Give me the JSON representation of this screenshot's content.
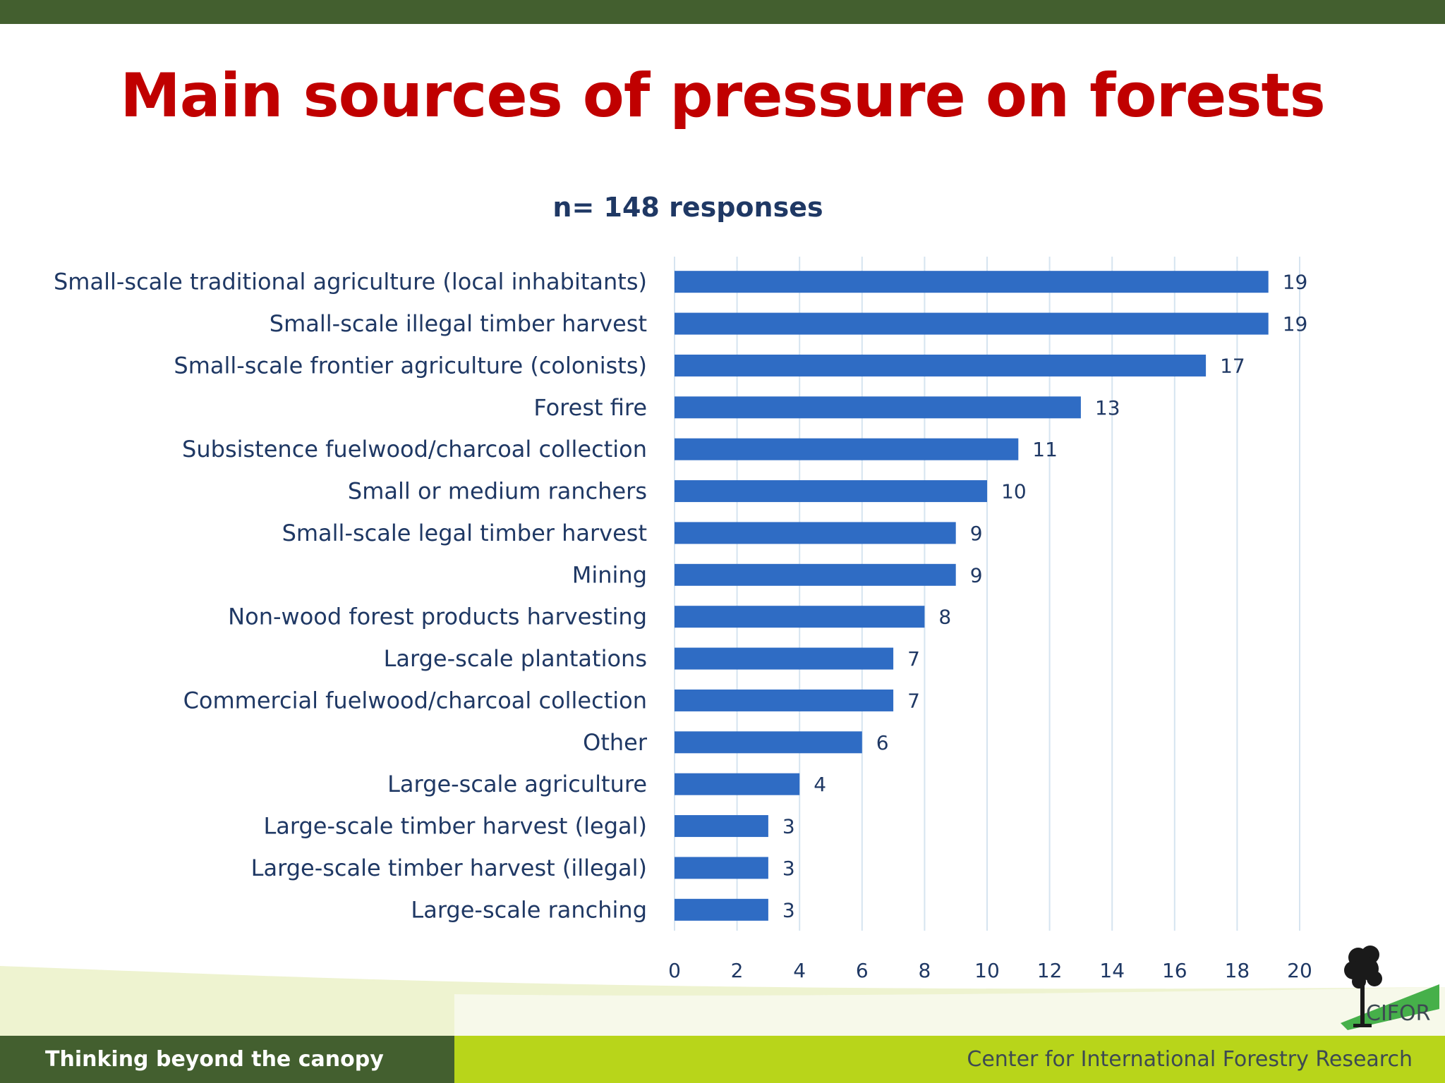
{
  "slide": {
    "title": "Main sources of pressure on forests",
    "footer_left": "Thinking beyond the canopy",
    "footer_right": "Center for International Forestry Research",
    "logo_text": "CIFOR"
  },
  "colors": {
    "top_bar": "#435f2f",
    "title": "#c00000",
    "subtitle": "#1f3864",
    "label_text": "#1f3864",
    "bar": "#2f6cc4",
    "grid": "#d6e4f0",
    "footer_dark": "#435f2f",
    "footer_lime": "#b8d51a",
    "footer_text": "#3d4a52",
    "logo_tree": "#1a1a1a",
    "logo_swoosh": "#46b04a"
  },
  "chart_data": {
    "type": "bar",
    "orientation": "horizontal",
    "title": "n= 148 responses",
    "xlabel": "",
    "ylabel": "",
    "xlim": [
      0,
      20
    ],
    "xticks": [
      0,
      2,
      4,
      6,
      8,
      10,
      12,
      14,
      16,
      18,
      20
    ],
    "grid": "vertical",
    "data_labels": true,
    "categories": [
      "Small-scale traditional agriculture (local inhabitants)",
      "Small-scale illegal timber harvest",
      "Small-scale frontier agriculture (colonists)",
      "Forest fire",
      "Subsistence fuelwood/charcoal collection",
      "Small or medium ranchers",
      "Small-scale legal timber harvest",
      "Mining",
      "Non-wood forest products harvesting",
      "Large-scale plantations",
      "Commercial fuelwood/charcoal collection",
      "Other",
      "Large-scale agriculture",
      "Large-scale timber harvest (legal)",
      "Large-scale timber harvest (illegal)",
      "Large-scale ranching"
    ],
    "values": [
      19,
      19,
      17,
      13,
      11,
      10,
      9,
      9,
      8,
      7,
      7,
      6,
      4,
      3,
      3,
      3
    ]
  }
}
